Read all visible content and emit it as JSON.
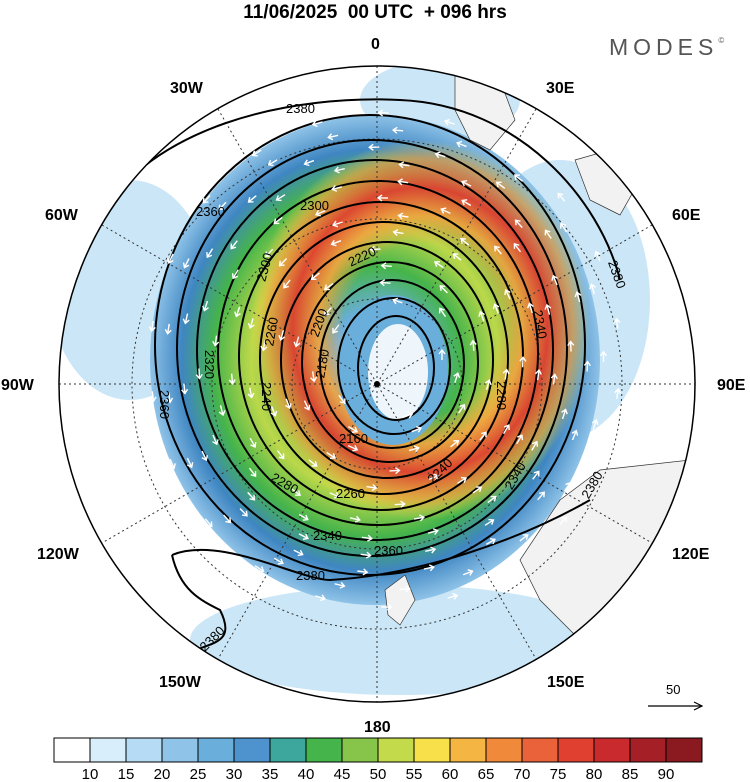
{
  "header": {
    "title": "11/06/2025  00 UTC  + 096 hrs",
    "brand": "MODES",
    "brand_mark": "©"
  },
  "map": {
    "projection": "south polar stereographic",
    "longitude_labels": [
      "0",
      "30E",
      "60E",
      "90E",
      "120E",
      "150E",
      "180",
      "150W",
      "120W",
      "90W",
      "60W",
      "30W"
    ],
    "contour_labels": [
      "2380",
      "2360",
      "2340",
      "2320",
      "2300",
      "2280",
      "2260",
      "2240",
      "2220",
      "2200",
      "2180",
      "2160"
    ],
    "shading_colors": {
      "light_blue": "#cbe7f7",
      "mid_blue": "#6aaedc",
      "dark_blue": "#3f86c2",
      "teal": "#3ea79d",
      "green": "#45b44b",
      "yellow_green": "#bcd84a",
      "yellow": "#f7e04a",
      "orange": "#f3a43f",
      "red": "#e0402f",
      "land": "#f2f2f2"
    }
  },
  "vector_reference": {
    "label": "50"
  },
  "colorbar": {
    "labels": [
      "10",
      "15",
      "20",
      "25",
      "30",
      "35",
      "40",
      "45",
      "50",
      "55",
      "60",
      "65",
      "70",
      "75",
      "80",
      "85",
      "90"
    ],
    "colors": [
      "#ffffff",
      "#d8eefb",
      "#b5dcf4",
      "#8fc3e8",
      "#6aaedc",
      "#4e93cd",
      "#3ea79d",
      "#45b44b",
      "#86c54a",
      "#c3da4a",
      "#f7e04a",
      "#f4b542",
      "#f08a3a",
      "#e9623a",
      "#e0402f",
      "#c82a2d",
      "#a52026",
      "#8a1a1f"
    ]
  }
}
